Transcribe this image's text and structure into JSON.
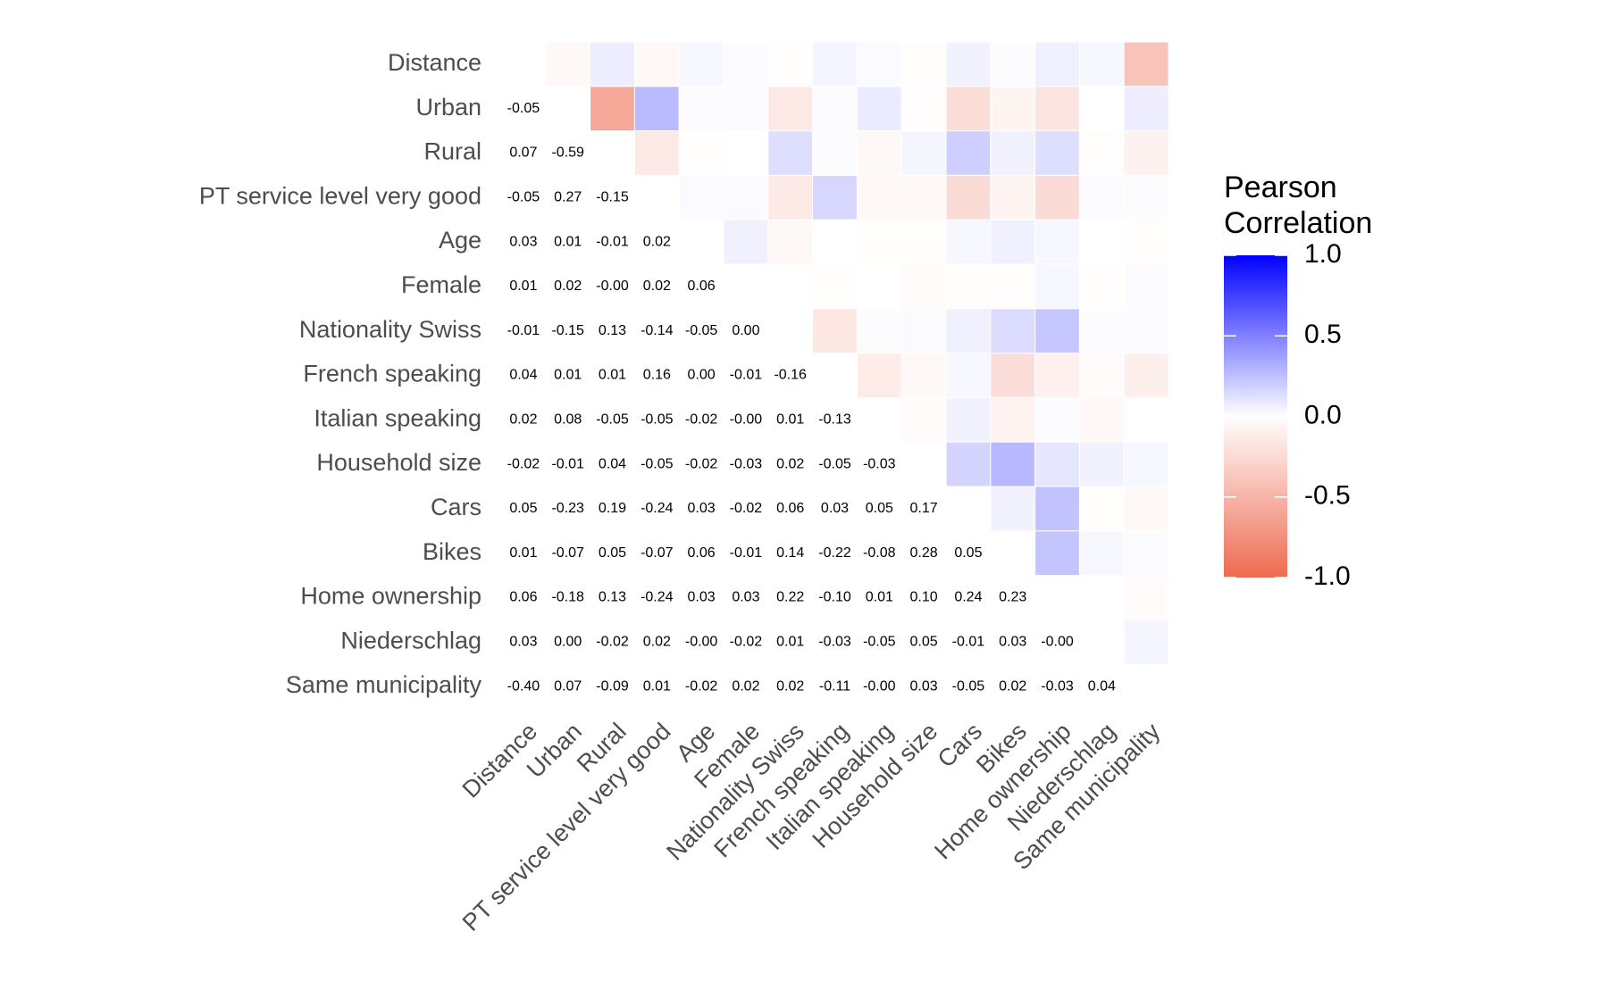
{
  "chart_data": {
    "type": "heatmap",
    "categories": [
      "Distance",
      "Urban",
      "Rural",
      "PT service level very good",
      "Age",
      "Female",
      "Nationality Swiss",
      "French speaking",
      "Italian speaking",
      "Household size",
      "Cars",
      "Bikes",
      "Home ownership",
      "Niederschlag",
      "Same municipality"
    ],
    "values": [
      [],
      [
        -0.05
      ],
      [
        0.07,
        -0.59
      ],
      [
        -0.05,
        0.27,
        -0.15
      ],
      [
        0.03,
        0.01,
        -0.01,
        0.02
      ],
      [
        0.01,
        0.02,
        0,
        0.02,
        0.06
      ],
      [
        -0.01,
        -0.15,
        0.13,
        -0.14,
        -0.05,
        0
      ],
      [
        0.04,
        0.01,
        0.01,
        0.16,
        0,
        -0.01,
        -0.16
      ],
      [
        0.02,
        0.08,
        -0.05,
        -0.05,
        -0.02,
        0,
        0.01,
        -0.13
      ],
      [
        -0.02,
        -0.01,
        0.04,
        -0.05,
        -0.02,
        -0.03,
        0.02,
        -0.05,
        -0.03
      ],
      [
        0.05,
        -0.23,
        0.19,
        -0.24,
        0.03,
        -0.02,
        0.06,
        0.03,
        0.05,
        0.17
      ],
      [
        0.01,
        -0.07,
        0.05,
        -0.07,
        0.06,
        -0.01,
        0.14,
        -0.22,
        -0.08,
        0.28,
        0.05
      ],
      [
        0.06,
        -0.18,
        0.13,
        -0.24,
        0.03,
        0.03,
        0.22,
        -0.1,
        0.01,
        0.1,
        0.24,
        0.23
      ],
      [
        0.03,
        0,
        -0.02,
        0.02,
        0,
        -0.02,
        0.01,
        -0.03,
        -0.05,
        0.05,
        -0.01,
        0.03,
        0
      ],
      [
        -0.4,
        0.07,
        -0.09,
        0.01,
        -0.02,
        0.02,
        0.02,
        -0.11,
        0,
        0.03,
        -0.05,
        0.02,
        -0.03,
        0.04
      ]
    ],
    "value_labels": [
      [],
      [
        "-0.05"
      ],
      [
        "0.07",
        "-0.59"
      ],
      [
        "-0.05",
        "0.27",
        "-0.15"
      ],
      [
        "0.03",
        "0.01",
        "-0.01",
        "0.02"
      ],
      [
        "0.01",
        "0.02",
        "-0.00",
        "0.02",
        "0.06"
      ],
      [
        "-0.01",
        "-0.15",
        "0.13",
        "-0.14",
        "-0.05",
        "0.00"
      ],
      [
        "0.04",
        "0.01",
        "0.01",
        "0.16",
        "0.00",
        "-0.01",
        "-0.16"
      ],
      [
        "0.02",
        "0.08",
        "-0.05",
        "-0.05",
        "-0.02",
        "-0.00",
        "0.01",
        "-0.13"
      ],
      [
        "-0.02",
        "-0.01",
        "0.04",
        "-0.05",
        "-0.02",
        "-0.03",
        "0.02",
        "-0.05",
        "-0.03"
      ],
      [
        "0.05",
        "-0.23",
        "0.19",
        "-0.24",
        "0.03",
        "-0.02",
        "0.06",
        "0.03",
        "0.05",
        "0.17"
      ],
      [
        "0.01",
        "-0.07",
        "0.05",
        "-0.07",
        "0.06",
        "-0.01",
        "0.14",
        "-0.22",
        "-0.08",
        "0.28",
        "0.05"
      ],
      [
        "0.06",
        "-0.18",
        "0.13",
        "-0.24",
        "0.03",
        "0.03",
        "0.22",
        "-0.10",
        "0.01",
        "0.10",
        "0.24",
        "0.23"
      ],
      [
        "0.03",
        "0.00",
        "-0.02",
        "0.02",
        "-0.00",
        "-0.02",
        "0.01",
        "-0.03",
        "-0.05",
        "0.05",
        "-0.01",
        "0.03",
        "-0.00"
      ],
      [
        "-0.40",
        "0.07",
        "-0.09",
        "0.01",
        "-0.02",
        "0.02",
        "0.02",
        "-0.11",
        "-0.00",
        "0.03",
        "-0.05",
        "0.02",
        "-0.03",
        "0.04"
      ]
    ],
    "legend_title": "Pearson Correlation",
    "colors": {
      "low": "#ee6a50",
      "mid": "#ffffff",
      "high": "#0000ff"
    },
    "clim": [
      -1,
      1
    ],
    "cticks": [
      {
        "value": 1,
        "label": "1.0"
      },
      {
        "value": 0.5,
        "label": "0.5"
      },
      {
        "value": 0,
        "label": "0.0"
      },
      {
        "value": -0.5,
        "label": "-0.5"
      },
      {
        "value": -1,
        "label": "-1.0"
      }
    ]
  }
}
